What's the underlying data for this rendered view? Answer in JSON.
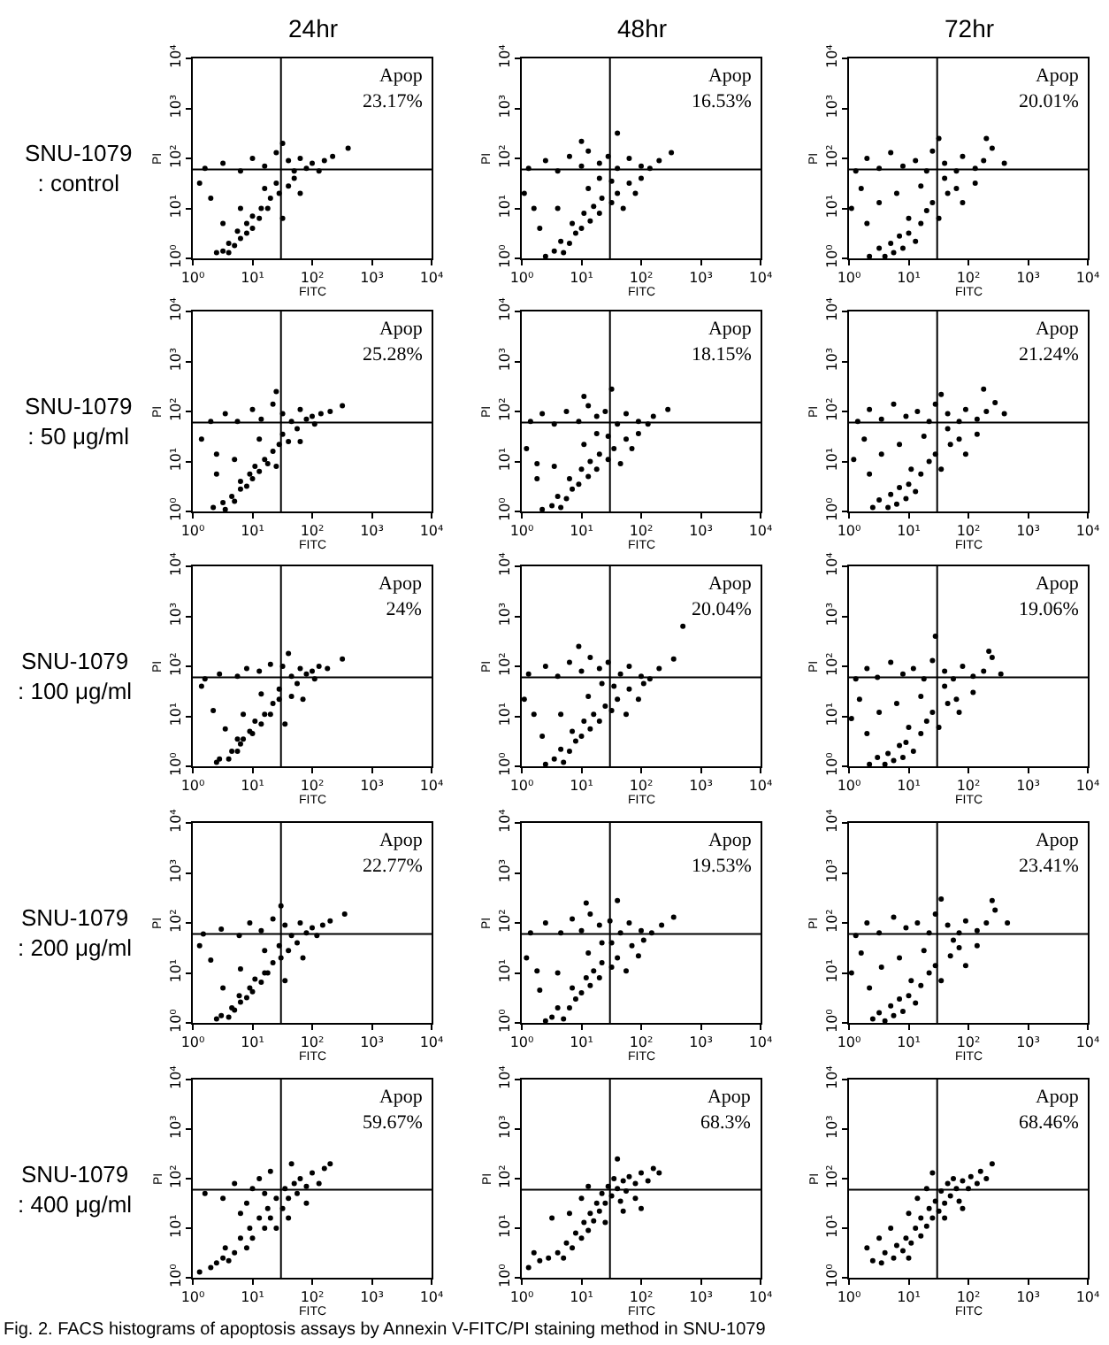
{
  "chart_data": [
    {
      "type": "scatter",
      "title": "24hr",
      "subtitle": "SNU-1079\n: control",
      "xlabel": "FITC",
      "ylabel": "PI",
      "annotations": [
        "Apop\n23.17%"
      ],
      "log": "xy",
      "marker": "circle",
      "xlim": [
        1,
        10000
      ],
      "ylim": [
        1,
        10000
      ],
      "xticks": [
        {
          "value": 1,
          "label": "10⁰"
        },
        {
          "value": 10,
          "label": "10¹"
        },
        {
          "value": 100,
          "label": "10²"
        },
        {
          "value": 1000,
          "label": "10³"
        },
        {
          "value": 10000,
          "label": "10⁴"
        }
      ],
      "yticks": [
        {
          "value": 1,
          "label": "10⁰"
        },
        {
          "value": 10,
          "label": "10¹"
        },
        {
          "value": 100,
          "label": "10²"
        },
        {
          "value": 1000,
          "label": "10³"
        },
        {
          "value": 10000,
          "label": "10⁴"
        }
      ],
      "ref_lines": [
        {
          "axis": "x",
          "value": 30,
          "color": "#000000"
        },
        {
          "axis": "y",
          "value": 60,
          "color": "#000000"
        }
      ],
      "x": [
        2.5,
        3.2,
        4,
        4,
        5,
        6.3,
        5.6,
        8,
        8,
        10,
        10,
        13,
        14,
        18,
        20,
        28,
        25,
        40,
        50,
        16,
        6.3,
        32,
        63,
        3.2,
        1.6,
        3.2,
        6.3,
        10,
        16,
        25,
        40,
        50,
        63,
        80,
        100,
        130,
        160,
        220,
        1.3,
        2,
        400,
        32
      ],
      "series": [
        {
          "color": "#000000",
          "values": [
            1.3,
            1.4,
            1.3,
            2,
            1.8,
            2.5,
            3.5,
            3.2,
            5,
            4,
            7,
            6.3,
            10,
            10,
            16,
            20,
            32,
            28,
            40,
            25,
            10,
            6.3,
            20,
            5,
            63,
            80,
            56,
            100,
            70,
            130,
            90,
            56,
            100,
            63,
            80,
            56,
            90,
            110,
            32,
            16,
            160,
            200
          ]
        }
      ]
    },
    {
      "type": "scatter",
      "title": "48hr",
      "xlabel": "FITC",
      "ylabel": "PI",
      "annotations": [
        "Apop\n16.53%"
      ],
      "log": "xy",
      "marker": "circle",
      "xlim": [
        1,
        10000
      ],
      "ylim": [
        1,
        10000
      ],
      "xticks": [
        {
          "value": 1,
          "label": "10⁰"
        },
        {
          "value": 10,
          "label": "10¹"
        },
        {
          "value": 100,
          "label": "10²"
        },
        {
          "value": 1000,
          "label": "10³"
        },
        {
          "value": 10000,
          "label": "10⁴"
        }
      ],
      "yticks": [
        {
          "value": 1,
          "label": "10⁰"
        },
        {
          "value": 10,
          "label": "10¹"
        },
        {
          "value": 100,
          "label": "10²"
        },
        {
          "value": 1000,
          "label": "10³"
        },
        {
          "value": 10000,
          "label": "10⁴"
        }
      ],
      "ref_lines": [
        {
          "axis": "x",
          "value": 30,
          "color": "#000000"
        },
        {
          "axis": "y",
          "value": 60,
          "color": "#000000"
        }
      ],
      "x": [
        2.5,
        3.5,
        5,
        4.5,
        6.3,
        8,
        7,
        10,
        11,
        14,
        16,
        20,
        22,
        32,
        40,
        50,
        63,
        80,
        32,
        13,
        4,
        2,
        100,
        20,
        1.3,
        2.5,
        4,
        6.3,
        10,
        13,
        20,
        28,
        40,
        63,
        100,
        140,
        200,
        320,
        1.1,
        1.6,
        40,
        10
      ],
      "series": [
        {
          "color": "#000000",
          "values": [
            1.1,
            1.4,
            1.3,
            2.2,
            2,
            3.2,
            5,
            4,
            8,
            5.6,
            11,
            8,
            16,
            13,
            20,
            10,
            32,
            20,
            35,
            25,
            10,
            4,
            40,
            40,
            63,
            90,
            56,
            110,
            70,
            140,
            80,
            110,
            63,
            100,
            70,
            63,
            90,
            130,
            20,
            10,
            320,
            220
          ]
        }
      ]
    },
    {
      "type": "scatter",
      "title": "72hr",
      "xlabel": "FITC",
      "ylabel": "PI",
      "annotations": [
        "Apop\n20.01%"
      ],
      "log": "xy",
      "marker": "circle",
      "xlim": [
        1,
        10000
      ],
      "ylim": [
        1,
        10000
      ],
      "xticks": [
        {
          "value": 1,
          "label": "10⁰"
        },
        {
          "value": 10,
          "label": "10¹"
        },
        {
          "value": 100,
          "label": "10²"
        },
        {
          "value": 1000,
          "label": "10³"
        },
        {
          "value": 10000,
          "label": "10⁴"
        }
      ],
      "yticks": [
        {
          "value": 1,
          "label": "10⁰"
        },
        {
          "value": 10,
          "label": "10¹"
        },
        {
          "value": 100,
          "label": "10²"
        },
        {
          "value": 1000,
          "label": "10³"
        },
        {
          "value": 10000,
          "label": "10⁴"
        }
      ],
      "ref_lines": [
        {
          "axis": "x",
          "value": 30,
          "color": "#000000"
        },
        {
          "axis": "y",
          "value": 60,
          "color": "#000000"
        }
      ],
      "x": [
        2.2,
        3.2,
        4,
        5,
        5.6,
        7,
        8,
        10,
        10,
        13,
        16,
        20,
        25,
        32,
        45,
        63,
        2,
        3.2,
        6.3,
        16,
        80,
        130,
        40,
        1.6,
        1.3,
        2,
        3.2,
        5,
        8,
        13,
        20,
        25,
        40,
        63,
        80,
        130,
        180,
        250,
        1.1,
        400,
        32,
        200
      ],
      "series": [
        {
          "color": "#000000",
          "values": [
            1.1,
            1.6,
            1.1,
            2,
            1.3,
            2.8,
            1.6,
            3.2,
            6.3,
            2.2,
            5,
            9,
            13,
            6.3,
            20,
            25,
            5,
            13,
            20,
            28,
            13,
            32,
            40,
            25,
            56,
            100,
            63,
            130,
            70,
            90,
            56,
            140,
            80,
            56,
            110,
            63,
            90,
            160,
            10,
            80,
            250,
            250
          ]
        }
      ]
    },
    {
      "type": "scatter",
      "subtitle": "SNU-1079\n: 50 μg/ml",
      "xlabel": "FITC",
      "ylabel": "PI",
      "annotations": [
        "Apop\n25.28%"
      ],
      "log": "xy",
      "marker": "circle",
      "xlim": [
        1,
        10000
      ],
      "ylim": [
        1,
        10000
      ],
      "xticks": [
        {
          "value": 1,
          "label": "10⁰"
        },
        {
          "value": 10,
          "label": "10¹"
        },
        {
          "value": 100,
          "label": "10²"
        },
        {
          "value": 1000,
          "label": "10³"
        },
        {
          "value": 10000,
          "label": "10⁴"
        }
      ],
      "yticks": [
        {
          "value": 1,
          "label": "10⁰"
        },
        {
          "value": 10,
          "label": "10¹"
        },
        {
          "value": 100,
          "label": "10²"
        },
        {
          "value": 1000,
          "label": "10³"
        },
        {
          "value": 10000,
          "label": "10⁴"
        }
      ],
      "ref_lines": [
        {
          "axis": "x",
          "value": 30,
          "color": "#000000"
        },
        {
          "axis": "y",
          "value": 60,
          "color": "#000000"
        }
      ],
      "x": [
        2.2,
        3.2,
        3.5,
        4.5,
        5,
        6.3,
        6.3,
        8,
        9,
        10,
        11,
        13,
        16,
        18,
        22,
        28,
        32,
        40,
        56,
        13,
        5,
        25,
        63,
        2.5,
        2,
        3.5,
        5.6,
        10,
        14,
        22,
        32,
        45,
        63,
        80,
        100,
        110,
        140,
        200,
        1.4,
        2.5,
        320,
        25
      ],
      "series": [
        {
          "color": "#000000",
          "values": [
            1.2,
            1.5,
            1.1,
            2,
            1.6,
            2.8,
            4,
            3.2,
            5.6,
            4.5,
            8,
            6.3,
            11,
            9,
            16,
            22,
            35,
            25,
            45,
            28,
            11,
            8,
            25,
            5.6,
            63,
            90,
            63,
            110,
            70,
            140,
            90,
            63,
            110,
            70,
            80,
            56,
            90,
            100,
            28,
            14,
            130,
            250
          ]
        }
      ]
    },
    {
      "type": "scatter",
      "xlabel": "FITC",
      "ylabel": "PI",
      "annotations": [
        "Apop\n18.15%"
      ],
      "log": "xy",
      "marker": "circle",
      "xlim": [
        1,
        10000
      ],
      "ylim": [
        1,
        10000
      ],
      "xticks": [
        {
          "value": 1,
          "label": "10⁰"
        },
        {
          "value": 10,
          "label": "10¹"
        },
        {
          "value": 100,
          "label": "10²"
        },
        {
          "value": 1000,
          "label": "10³"
        },
        {
          "value": 10000,
          "label": "10⁴"
        }
      ],
      "yticks": [
        {
          "value": 1,
          "label": "10⁰"
        },
        {
          "value": 10,
          "label": "10¹"
        },
        {
          "value": 100,
          "label": "10²"
        },
        {
          "value": 1000,
          "label": "10³"
        },
        {
          "value": 10000,
          "label": "10⁴"
        }
      ],
      "ref_lines": [
        {
          "axis": "x",
          "value": 30,
          "color": "#000000"
        },
        {
          "axis": "y",
          "value": 60,
          "color": "#000000"
        }
      ],
      "x": [
        2.2,
        3.2,
        4.5,
        4,
        5.6,
        7,
        6.3,
        9,
        10,
        13,
        14,
        18,
        20,
        28,
        35,
        45,
        56,
        70,
        28,
        11,
        3.5,
        1.8,
        90,
        18,
        1.4,
        2.2,
        3.5,
        5.6,
        9,
        13,
        18,
        25,
        40,
        56,
        90,
        130,
        160,
        280,
        1.2,
        1.8,
        32,
        11
      ],
      "series": [
        {
          "color": "#000000",
          "values": [
            1.1,
            1.3,
            1.2,
            2,
            1.8,
            2.8,
            4.5,
            3.5,
            7,
            5,
            10,
            7,
            14,
            11,
            18,
            9,
            28,
            18,
            32,
            22,
            8,
            4.5,
            36,
            36,
            63,
            90,
            56,
            100,
            63,
            130,
            80,
            100,
            56,
            90,
            63,
            56,
            80,
            110,
            18,
            9,
            280,
            200
          ]
        }
      ]
    },
    {
      "type": "scatter",
      "xlabel": "FITC",
      "ylabel": "PI",
      "annotations": [
        "Apop\n21.24%"
      ],
      "log": "xy",
      "marker": "circle",
      "xlim": [
        1,
        10000
      ],
      "ylim": [
        1,
        10000
      ],
      "xticks": [
        {
          "value": 1,
          "label": "10⁰"
        },
        {
          "value": 10,
          "label": "10¹"
        },
        {
          "value": 100,
          "label": "10²"
        },
        {
          "value": 1000,
          "label": "10³"
        },
        {
          "value": 10000,
          "label": "10⁴"
        }
      ],
      "yticks": [
        {
          "value": 1,
          "label": "10⁰"
        },
        {
          "value": 10,
          "label": "10¹"
        },
        {
          "value": 100,
          "label": "10²"
        },
        {
          "value": 1000,
          "label": "10³"
        },
        {
          "value": 10000,
          "label": "10⁴"
        }
      ],
      "ref_lines": [
        {
          "axis": "x",
          "value": 30,
          "color": "#000000"
        },
        {
          "axis": "y",
          "value": 60,
          "color": "#000000"
        }
      ],
      "x": [
        2.5,
        3.2,
        4.5,
        5,
        6.3,
        7,
        9,
        10,
        11,
        13,
        16,
        22,
        28,
        35,
        50,
        70,
        2.2,
        3.5,
        7,
        18,
        90,
        140,
        45,
        1.8,
        1.4,
        2.2,
        3.5,
        5.6,
        9,
        14,
        22,
        28,
        45,
        70,
        90,
        140,
        200,
        280,
        1.2,
        400,
        35,
        180
      ],
      "series": [
        {
          "color": "#000000",
          "values": [
            1.2,
            1.7,
            1.2,
            2.2,
            1.4,
            3,
            1.8,
            3.5,
            7,
            2.5,
            5.6,
            10,
            14,
            7,
            22,
            28,
            5.6,
            14,
            22,
            32,
            14,
            35,
            45,
            28,
            63,
            110,
            70,
            140,
            80,
            100,
            63,
            140,
            90,
            63,
            110,
            70,
            100,
            150,
            11,
            90,
            220,
            280
          ]
        }
      ]
    },
    {
      "type": "scatter",
      "subtitle": "SNU-1079\n: 100 μg/ml",
      "xlabel": "FITC",
      "ylabel": "PI",
      "annotations": [
        "Apop\n24%"
      ],
      "log": "xy",
      "marker": "circle",
      "xlim": [
        1,
        10000
      ],
      "ylim": [
        1,
        10000
      ],
      "xticks": [
        {
          "value": 1,
          "label": "10⁰"
        },
        {
          "value": 10,
          "label": "10¹"
        },
        {
          "value": 100,
          "label": "10²"
        },
        {
          "value": 1000,
          "label": "10³"
        },
        {
          "value": 10000,
          "label": "10⁴"
        }
      ],
      "yticks": [
        {
          "value": 1,
          "label": "10⁰"
        },
        {
          "value": 10,
          "label": "10¹"
        },
        {
          "value": 100,
          "label": "10²"
        },
        {
          "value": 1000,
          "label": "10³"
        },
        {
          "value": 10000,
          "label": "10⁴"
        }
      ],
      "ref_lines": [
        {
          "axis": "x",
          "value": 30,
          "color": "#000000"
        },
        {
          "axis": "y",
          "value": 60,
          "color": "#000000"
        }
      ],
      "x": [
        2.5,
        2.8,
        4,
        4.5,
        5.6,
        6.3,
        5.6,
        7,
        9,
        10,
        11,
        14,
        16,
        20,
        22,
        28,
        28,
        45,
        56,
        14,
        7,
        35,
        70,
        3.5,
        1.6,
        2.8,
        5.6,
        8,
        13,
        20,
        32,
        45,
        63,
        80,
        100,
        110,
        130,
        180,
        1.4,
        2.2,
        320,
        40
      ],
      "series": [
        {
          "color": "#000000",
          "values": [
            1.2,
            1.4,
            1.4,
            2,
            2,
            2.8,
            3.5,
            3.5,
            5,
            4.5,
            8,
            7,
            11,
            11,
            18,
            22,
            35,
            25,
            45,
            28,
            11,
            7,
            22,
            5.6,
            56,
            70,
            63,
            90,
            80,
            110,
            100,
            63,
            90,
            70,
            80,
            56,
            100,
            90,
            40,
            13,
            140,
            180
          ]
        }
      ]
    },
    {
      "type": "scatter",
      "xlabel": "FITC",
      "ylabel": "PI",
      "annotations": [
        "Apop\n20.04%"
      ],
      "log": "xy",
      "marker": "circle",
      "xlim": [
        1,
        10000
      ],
      "ylim": [
        1,
        10000
      ],
      "xticks": [
        {
          "value": 1,
          "label": "10⁰"
        },
        {
          "value": 10,
          "label": "10¹"
        },
        {
          "value": 100,
          "label": "10²"
        },
        {
          "value": 1000,
          "label": "10³"
        },
        {
          "value": 10000,
          "label": "10⁴"
        }
      ],
      "yticks": [
        {
          "value": 1,
          "label": "10⁰"
        },
        {
          "value": 10,
          "label": "10¹"
        },
        {
          "value": 100,
          "label": "10²"
        },
        {
          "value": 1000,
          "label": "10³"
        },
        {
          "value": 10000,
          "label": "10⁴"
        }
      ],
      "ref_lines": [
        {
          "axis": "x",
          "value": 30,
          "color": "#000000"
        },
        {
          "axis": "y",
          "value": 60,
          "color": "#000000"
        }
      ],
      "x": [
        2.5,
        3.5,
        5,
        4.5,
        6.3,
        8,
        7,
        10,
        11,
        14,
        16,
        20,
        25,
        32,
        40,
        56,
        63,
        90,
        35,
        13,
        4.5,
        2.2,
        110,
        22,
        1.3,
        2.5,
        4,
        6.3,
        10,
        14,
        20,
        28,
        45,
        63,
        100,
        140,
        200,
        350,
        1.1,
        1.6,
        500,
        9
      ],
      "series": [
        {
          "color": "#000000",
          "values": [
            1.1,
            1.4,
            1.2,
            2.2,
            2,
            3.2,
            5,
            4,
            8,
            5.6,
            11,
            8,
            16,
            13,
            22,
            11,
            35,
            22,
            40,
            25,
            11,
            4,
            45,
            45,
            70,
            100,
            63,
            120,
            80,
            150,
            90,
            120,
            70,
            100,
            63,
            56,
            90,
            140,
            22,
            11,
            630,
            250
          ]
        }
      ]
    },
    {
      "type": "scatter",
      "xlabel": "FITC",
      "ylabel": "PI",
      "annotations": [
        "Apop\n19.06%"
      ],
      "log": "xy",
      "marker": "circle",
      "xlim": [
        1,
        10000
      ],
      "ylim": [
        1,
        10000
      ],
      "xticks": [
        {
          "value": 1,
          "label": "10⁰"
        },
        {
          "value": 10,
          "label": "10¹"
        },
        {
          "value": 100,
          "label": "10²"
        },
        {
          "value": 1000,
          "label": "10³"
        },
        {
          "value": 10000,
          "label": "10⁴"
        }
      ],
      "yticks": [
        {
          "value": 1,
          "label": "10⁰"
        },
        {
          "value": 10,
          "label": "10¹"
        },
        {
          "value": 100,
          "label": "10²"
        },
        {
          "value": 1000,
          "label": "10³"
        },
        {
          "value": 10000,
          "label": "10⁴"
        }
      ],
      "ref_lines": [
        {
          "axis": "x",
          "value": 30,
          "color": "#000000"
        },
        {
          "axis": "y",
          "value": 60,
          "color": "#000000"
        }
      ],
      "x": [
        2.2,
        3,
        4,
        4.5,
        5.6,
        7,
        8,
        9,
        10,
        12,
        16,
        20,
        25,
        32,
        45,
        63,
        2,
        3.2,
        6.3,
        16,
        70,
        120,
        40,
        1.5,
        1.3,
        2,
        3,
        5,
        8,
        12,
        18,
        25,
        40,
        56,
        80,
        120,
        180,
        250,
        1.1,
        350,
        28,
        220
      ],
      "series": [
        {
          "color": "#000000",
          "values": [
            1.1,
            1.5,
            1.1,
            1.8,
            1.3,
            2.6,
            1.5,
            3,
            6,
            2,
            4.5,
            8,
            12,
            6,
            18,
            22,
            4.5,
            12,
            18,
            25,
            12,
            30,
            40,
            22,
            56,
            90,
            60,
            120,
            70,
            90,
            56,
            130,
            80,
            56,
            100,
            63,
            80,
            150,
            9,
            70,
            400,
            200
          ]
        }
      ]
    },
    {
      "type": "scatter",
      "subtitle": "SNU-1079\n: 200 μg/ml",
      "xlabel": "FITC",
      "ylabel": "PI",
      "annotations": [
        "Apop\n22.77%"
      ],
      "log": "xy",
      "marker": "circle",
      "xlim": [
        1,
        10000
      ],
      "ylim": [
        1,
        10000
      ],
      "xticks": [
        {
          "value": 1,
          "label": "10⁰"
        },
        {
          "value": 10,
          "label": "10¹"
        },
        {
          "value": 100,
          "label": "10²"
        },
        {
          "value": 1000,
          "label": "10³"
        },
        {
          "value": 10000,
          "label": "10⁴"
        }
      ],
      "yticks": [
        {
          "value": 1,
          "label": "10⁰"
        },
        {
          "value": 10,
          "label": "10¹"
        },
        {
          "value": 100,
          "label": "10²"
        },
        {
          "value": 1000,
          "label": "10³"
        },
        {
          "value": 10000,
          "label": "10⁴"
        }
      ],
      "ref_lines": [
        {
          "axis": "x",
          "value": 30,
          "color": "#000000"
        },
        {
          "axis": "y",
          "value": 60,
          "color": "#000000"
        }
      ],
      "x": [
        2.5,
        3,
        4,
        4.5,
        5,
        6.3,
        6,
        8,
        9,
        10,
        11,
        14,
        16,
        18,
        22,
        30,
        28,
        40,
        56,
        16,
        6.3,
        35,
        70,
        3.2,
        1.5,
        3,
        6,
        9,
        14,
        22,
        35,
        45,
        63,
        80,
        100,
        120,
        150,
        200,
        1.3,
        2,
        350,
        30
      ],
      "series": [
        {
          "color": "#000000",
          "values": [
            1.2,
            1.4,
            1.3,
            2,
            1.8,
            2.6,
            3.5,
            3.2,
            5,
            4.2,
            7.5,
            6.5,
            10,
            10,
            16,
            20,
            35,
            28,
            40,
            28,
            12,
            7,
            20,
            5,
            60,
            75,
            56,
            100,
            70,
            120,
            90,
            56,
            100,
            63,
            80,
            56,
            90,
            110,
            35,
            18,
            150,
            220
          ]
        }
      ]
    },
    {
      "type": "scatter",
      "xlabel": "FITC",
      "ylabel": "PI",
      "annotations": [
        "Apop\n19.53%"
      ],
      "log": "xy",
      "marker": "circle",
      "xlim": [
        1,
        10000
      ],
      "ylim": [
        1,
        10000
      ],
      "xticks": [
        {
          "value": 1,
          "label": "10⁰"
        },
        {
          "value": 10,
          "label": "10¹"
        },
        {
          "value": 100,
          "label": "10²"
        },
        {
          "value": 1000,
          "label": "10³"
        },
        {
          "value": 10000,
          "label": "10⁴"
        }
      ],
      "yticks": [
        {
          "value": 1,
          "label": "10⁰"
        },
        {
          "value": 10,
          "label": "10¹"
        },
        {
          "value": 100,
          "label": "10²"
        },
        {
          "value": 1000,
          "label": "10³"
        },
        {
          "value": 10000,
          "label": "10⁴"
        }
      ],
      "ref_lines": [
        {
          "axis": "x",
          "value": 30,
          "color": "#000000"
        },
        {
          "axis": "y",
          "value": 60,
          "color": "#000000"
        }
      ],
      "x": [
        2.5,
        3.2,
        5,
        4,
        6.3,
        8,
        7,
        10,
        12,
        14,
        16,
        20,
        22,
        32,
        40,
        56,
        70,
        90,
        32,
        13,
        4,
        2,
        110,
        22,
        1.4,
        2.5,
        4.5,
        7,
        10,
        14,
        20,
        30,
        45,
        63,
        100,
        150,
        220,
        350,
        1.2,
        1.8,
        40,
        12
      ],
      "series": [
        {
          "color": "#000000",
          "values": [
            1.1,
            1.3,
            1.2,
            2,
            2,
            3,
            5,
            4,
            8,
            5.6,
            11,
            8,
            16,
            13,
            20,
            11,
            35,
            22,
            40,
            25,
            10,
            4.5,
            45,
            40,
            63,
            100,
            63,
            120,
            70,
            150,
            90,
            110,
            63,
            100,
            70,
            63,
            90,
            130,
            20,
            11,
            280,
            250
          ]
        }
      ]
    },
    {
      "type": "scatter",
      "xlabel": "FITC",
      "ylabel": "PI",
      "annotations": [
        "Apop\n23.41%"
      ],
      "log": "xy",
      "marker": "circle",
      "xlim": [
        1,
        10000
      ],
      "ylim": [
        1,
        10000
      ],
      "xticks": [
        {
          "value": 1,
          "label": "10⁰"
        },
        {
          "value": 10,
          "label": "10¹"
        },
        {
          "value": 100,
          "label": "10²"
        },
        {
          "value": 1000,
          "label": "10³"
        },
        {
          "value": 10000,
          "label": "10⁴"
        }
      ],
      "yticks": [
        {
          "value": 1,
          "label": "10⁰"
        },
        {
          "value": 10,
          "label": "10¹"
        },
        {
          "value": 100,
          "label": "10²"
        },
        {
          "value": 1000,
          "label": "10³"
        },
        {
          "value": 10000,
          "label": "10⁴"
        }
      ],
      "ref_lines": [
        {
          "axis": "x",
          "value": 30,
          "color": "#000000"
        },
        {
          "axis": "y",
          "value": 60,
          "color": "#000000"
        }
      ],
      "x": [
        2.5,
        3.2,
        4,
        5,
        5.6,
        7,
        8,
        10,
        11,
        13,
        16,
        22,
        28,
        35,
        50,
        70,
        2.2,
        3.5,
        7,
        18,
        90,
        140,
        56,
        1.6,
        1.3,
        2,
        3.2,
        5.6,
        9,
        14,
        22,
        28,
        45,
        70,
        90,
        140,
        200,
        280,
        1.1,
        450,
        35,
        250
      ],
      "series": [
        {
          "color": "#000000",
          "values": [
            1.2,
            1.6,
            1.1,
            2.2,
            1.4,
            3,
            1.7,
            3.5,
            7,
            2.5,
            5.6,
            10,
            14,
            7,
            22,
            32,
            5,
            13,
            20,
            28,
            14,
            35,
            45,
            25,
            56,
            100,
            63,
            130,
            80,
            100,
            63,
            150,
            90,
            63,
            110,
            70,
            100,
            180,
            10,
            100,
            300,
            280
          ]
        }
      ]
    },
    {
      "type": "scatter",
      "subtitle": "SNU-1079\n: 400 μg/ml",
      "xlabel": "FITC",
      "ylabel": "PI",
      "annotations": [
        "Apop\n59.67%"
      ],
      "log": "xy",
      "marker": "circle",
      "xlim": [
        1,
        10000
      ],
      "ylim": [
        1,
        10000
      ],
      "xticks": [
        {
          "value": 1,
          "label": "10⁰"
        },
        {
          "value": 10,
          "label": "10¹"
        },
        {
          "value": 100,
          "label": "10²"
        },
        {
          "value": 1000,
          "label": "10³"
        },
        {
          "value": 10000,
          "label": "10⁴"
        }
      ],
      "yticks": [
        {
          "value": 1,
          "label": "10⁰"
        },
        {
          "value": 10,
          "label": "10¹"
        },
        {
          "value": 100,
          "label": "10²"
        },
        {
          "value": 1000,
          "label": "10³"
        },
        {
          "value": 10000,
          "label": "10⁴"
        }
      ],
      "ref_lines": [
        {
          "axis": "x",
          "value": 30,
          "color": "#000000"
        },
        {
          "axis": "y",
          "value": 60,
          "color": "#000000"
        }
      ],
      "x": [
        2,
        2.5,
        3.2,
        4,
        3.5,
        5,
        6.3,
        8,
        9,
        10,
        13,
        16,
        18,
        20,
        25,
        32,
        35,
        40,
        50,
        56,
        63,
        80,
        100,
        130,
        160,
        8,
        10,
        13,
        16,
        20,
        5,
        3.2,
        6.3,
        25,
        40,
        80,
        200,
        1.3,
        1.6,
        45
      ],
      "series": [
        {
          "color": "#000000",
          "values": [
            1.6,
            2,
            2.5,
            2.2,
            4,
            3.2,
            6.3,
            4,
            10,
            6.3,
            16,
            10,
            25,
            16,
            40,
            25,
            63,
            40,
            80,
            50,
            100,
            70,
            130,
            80,
            160,
            32,
            63,
            100,
            50,
            140,
            80,
            40,
            20,
            10,
            16,
            32,
            200,
            1.3,
            50,
            200
          ]
        }
      ]
    },
    {
      "type": "scatter",
      "xlabel": "FITC",
      "ylabel": "PI",
      "annotations": [
        "Apop\n68.3%"
      ],
      "log": "xy",
      "marker": "circle",
      "xlim": [
        1,
        10000
      ],
      "ylim": [
        1,
        10000
      ],
      "xticks": [
        {
          "value": 1,
          "label": "10⁰"
        },
        {
          "value": 10,
          "label": "10¹"
        },
        {
          "value": 100,
          "label": "10²"
        },
        {
          "value": 1000,
          "label": "10³"
        },
        {
          "value": 10000,
          "label": "10⁴"
        }
      ],
      "yticks": [
        {
          "value": 1,
          "label": "10⁰"
        },
        {
          "value": 10,
          "label": "10¹"
        },
        {
          "value": 100,
          "label": "10²"
        },
        {
          "value": 1000,
          "label": "10³"
        },
        {
          "value": 10000,
          "label": "10⁴"
        }
      ],
      "ref_lines": [
        {
          "axis": "x",
          "value": 30,
          "color": "#000000"
        },
        {
          "axis": "y",
          "value": 60,
          "color": "#000000"
        }
      ],
      "x": [
        2,
        2.8,
        4,
        5,
        5.6,
        7,
        8,
        10,
        11,
        13,
        14,
        16,
        18,
        20,
        22,
        25,
        28,
        32,
        35,
        40,
        45,
        50,
        56,
        63,
        80,
        100,
        130,
        160,
        200,
        10,
        13,
        6.3,
        25,
        50,
        80,
        1.3,
        3.2,
        40,
        100,
        1.6
      ],
      "series": [
        {
          "color": "#000000",
          "values": [
            2.2,
            2.5,
            3.2,
            2.5,
            5,
            4,
            8,
            6.3,
            13,
            9,
            20,
            14,
            32,
            22,
            50,
            32,
            70,
            45,
            100,
            63,
            35,
            90,
            56,
            110,
            80,
            130,
            90,
            160,
            130,
            40,
            70,
            20,
            13,
            22,
            40,
            1.6,
            16,
            250,
            25,
            3.2
          ]
        }
      ]
    },
    {
      "type": "scatter",
      "xlabel": "FITC",
      "ylabel": "PI",
      "annotations": [
        "Apop\n68.46%",
        "Fig. 2. FACS histograms of apoptosis assays by Annexin V-FITC/PI staining method in SNU-1079"
      ],
      "log": "xy",
      "marker": "circle",
      "xlim": [
        1,
        10000
      ],
      "ylim": [
        1,
        10000
      ],
      "xticks": [
        {
          "value": 1,
          "label": "10⁰"
        },
        {
          "value": 10,
          "label": "10¹"
        },
        {
          "value": 100,
          "label": "10²"
        },
        {
          "value": 1000,
          "label": "10³"
        },
        {
          "value": 10000,
          "label": "10⁴"
        }
      ],
      "yticks": [
        {
          "value": 1,
          "label": "10⁰"
        },
        {
          "value": 10,
          "label": "10¹"
        },
        {
          "value": 100,
          "label": "10²"
        },
        {
          "value": 1000,
          "label": "10³"
        },
        {
          "value": 10000,
          "label": "10⁴"
        }
      ],
      "ref_lines": [
        {
          "axis": "x",
          "value": 30,
          "color": "#000000"
        },
        {
          "axis": "y",
          "value": 60,
          "color": "#000000"
        }
      ],
      "x": [
        2.5,
        3.5,
        4,
        5.6,
        6.3,
        8,
        9,
        11,
        13,
        16,
        16,
        20,
        22,
        25,
        28,
        32,
        35,
        40,
        45,
        50,
        56,
        63,
        70,
        80,
        100,
        110,
        140,
        160,
        10,
        14,
        20,
        40,
        80,
        5,
        2,
        200,
        25,
        250,
        10,
        3.2
      ],
      "series": [
        {
          "color": "#000000",
          "values": [
            2.2,
            2,
            3.2,
            2.5,
            4.5,
            3.5,
            6.3,
            5,
            10,
            7,
            16,
            11,
            25,
            16,
            35,
            22,
            56,
            32,
            80,
            45,
            100,
            63,
            35,
            90,
            63,
            110,
            80,
            140,
            20,
            40,
            63,
            16,
            25,
            10,
            4,
            100,
            130,
            200,
            2.5,
            6.3
          ]
        }
      ]
    }
  ]
}
